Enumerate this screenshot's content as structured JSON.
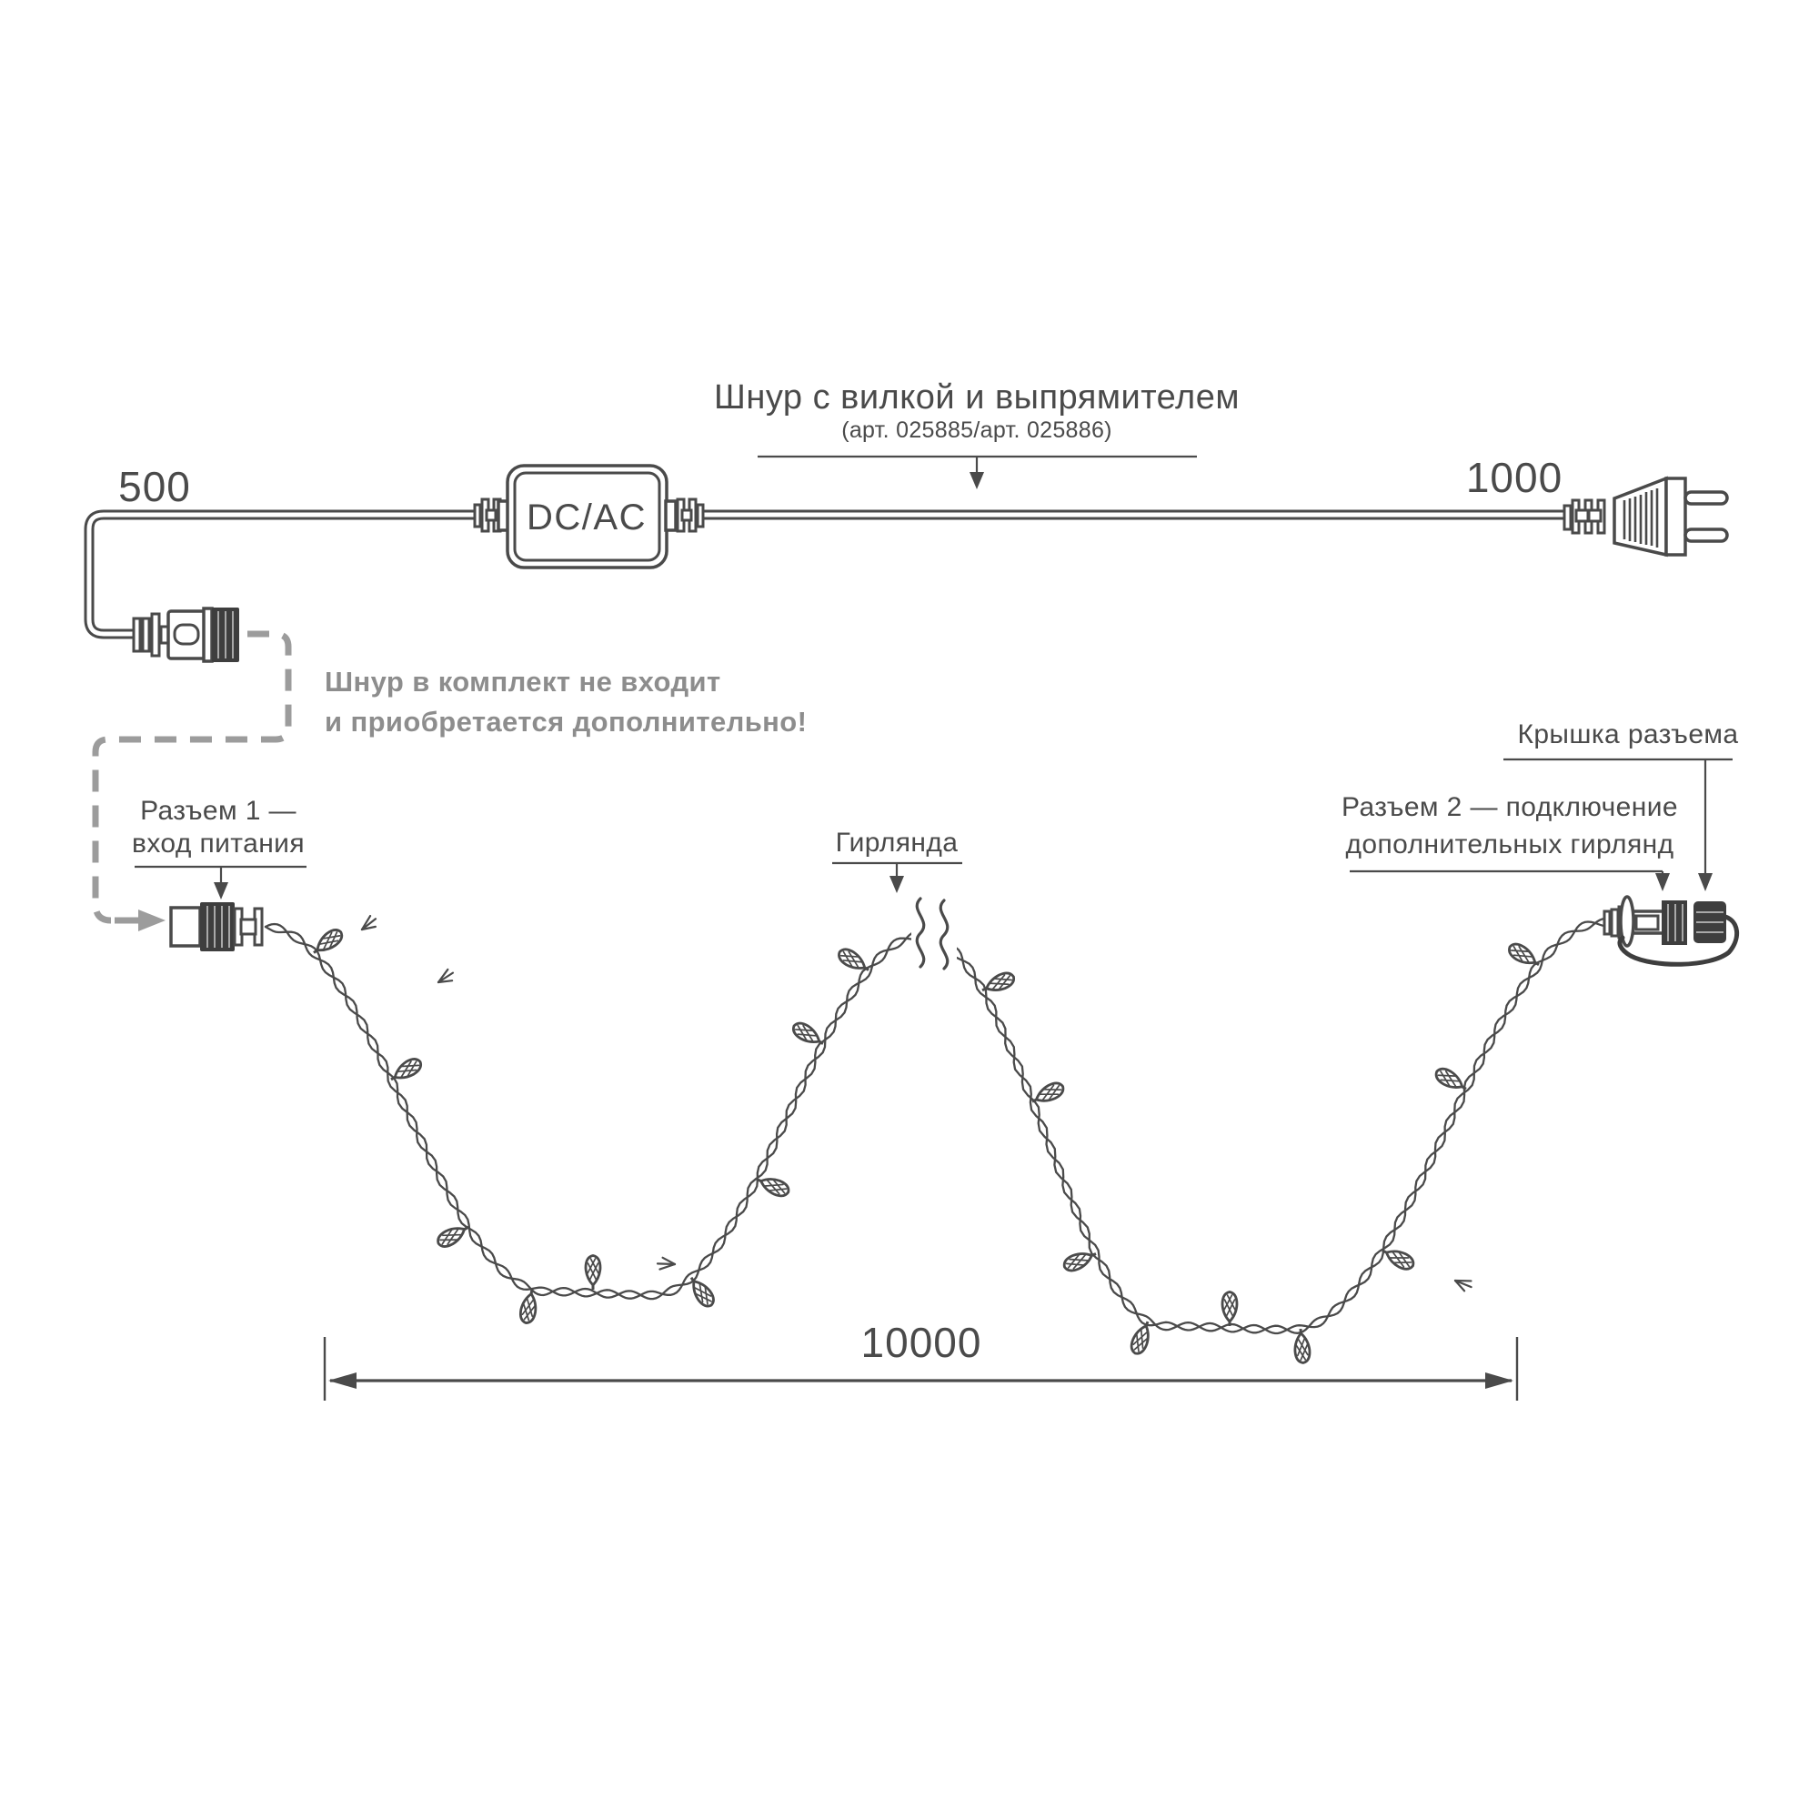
{
  "title": {
    "text": "Шнур с вилкой и выпрямителем",
    "subtitle": "(арт. 025885/арт. 025886)"
  },
  "labels": {
    "left_cord_length": "500",
    "right_cord_length": "1000",
    "garland_length": "10000",
    "adapter": "DC/AC",
    "note_line1": "Шнур в комплект не входит",
    "note_line2": "и приобретается дополнительно!",
    "connector1_line1": "Разъем 1 —",
    "connector1_line2": "вход питания",
    "garland": "Гирлянда",
    "connector2_line1": "Разъем 2 — подключение",
    "connector2_line2": "дополнительных гирлянд",
    "cap_cover": "Крышка разъема"
  },
  "colors": {
    "line": "#4a4a4a",
    "dark_fill": "#3e3e3e",
    "note_gray": "#8d8d8d",
    "dashed_gray": "#9c9c9c",
    "background": "#ffffff"
  }
}
